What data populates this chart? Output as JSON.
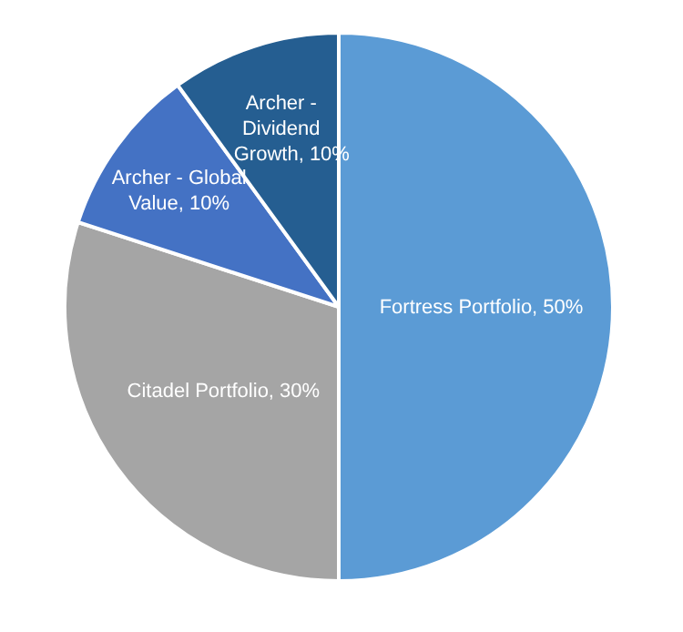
{
  "chart_data": {
    "type": "pie",
    "categories": [
      "Fortress Portfolio",
      "Citadel Portfolio",
      "Archer - Global Value",
      "Archer - Dividend Growth"
    ],
    "values": [
      50,
      30,
      10,
      10
    ],
    "colors": [
      "#5b9bd5",
      "#a5a5a5",
      "#4472c4",
      "#255e91"
    ],
    "value_labels": [
      "50%",
      "30%",
      "10%",
      "10%"
    ]
  }
}
